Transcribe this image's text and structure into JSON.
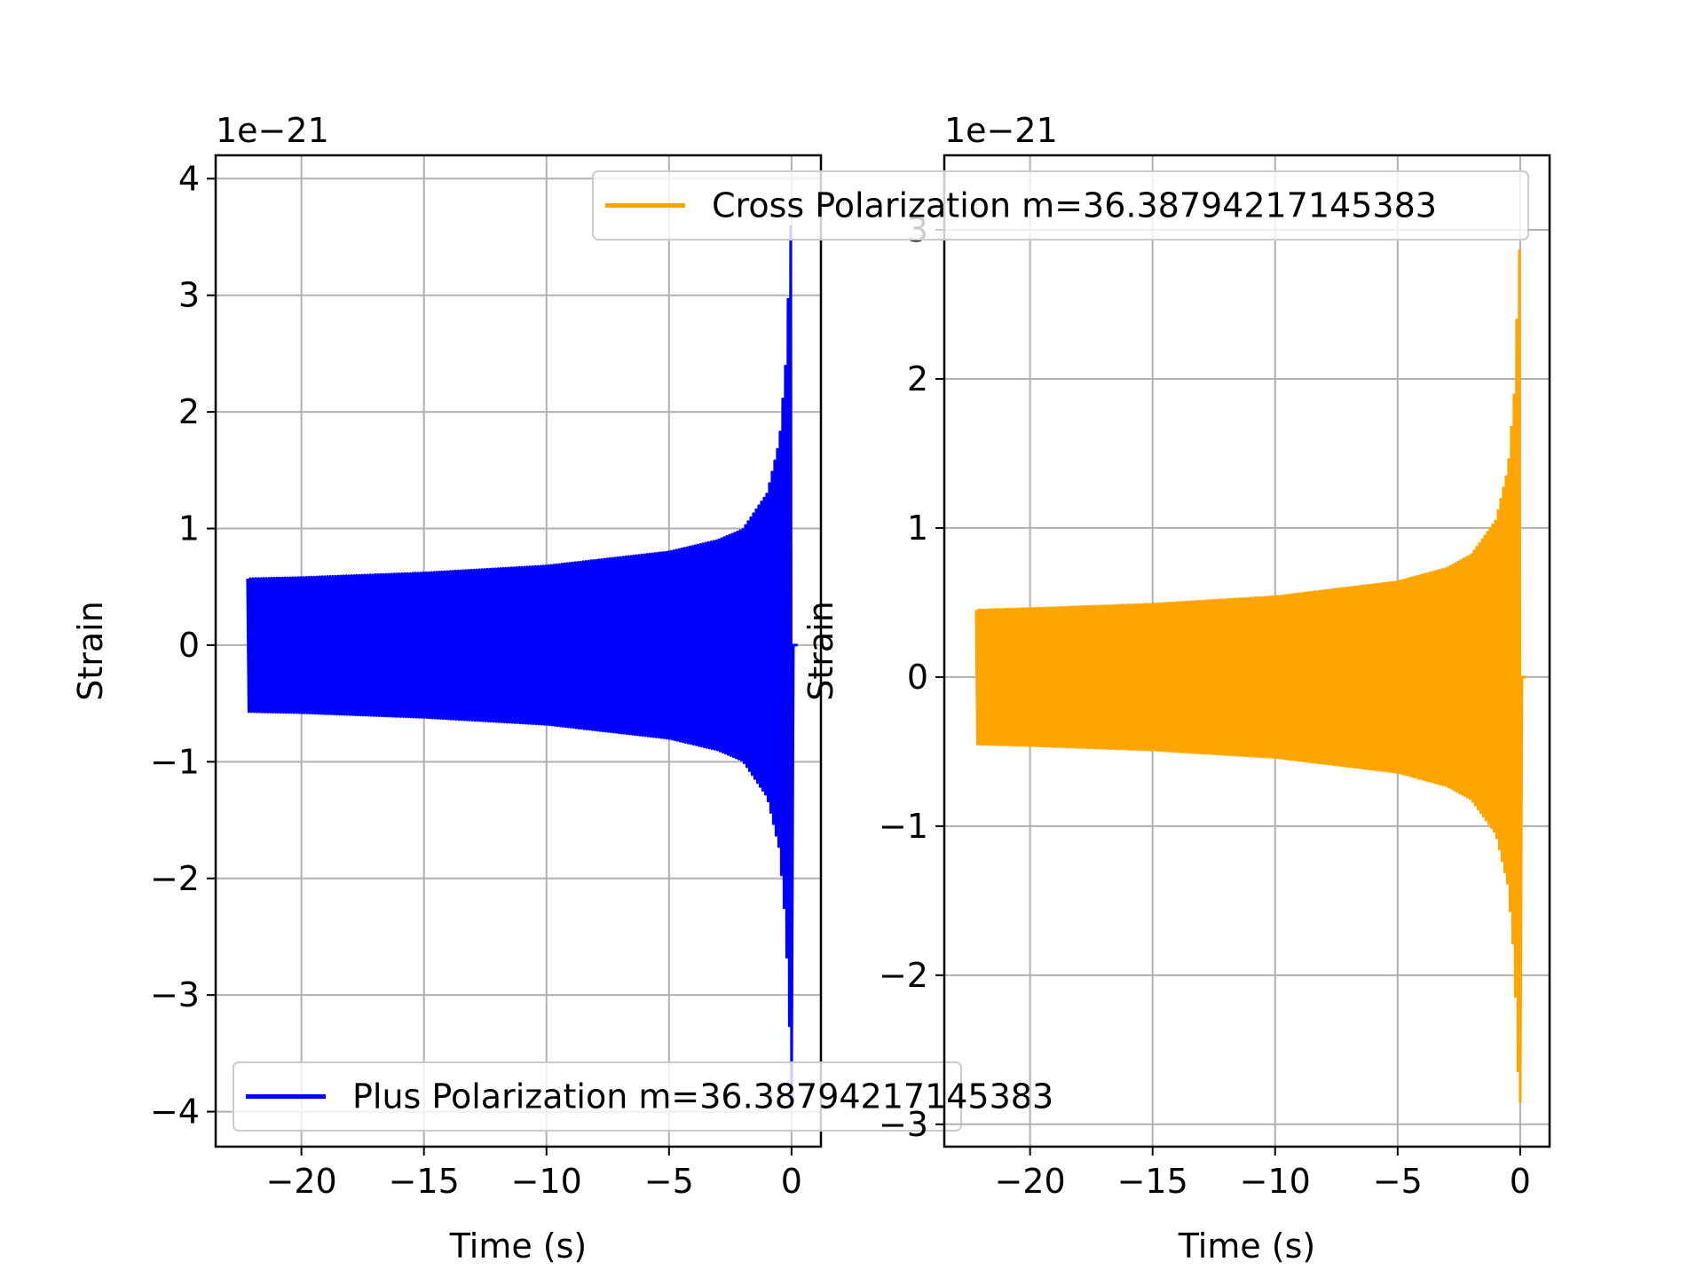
{
  "chart_data": [
    {
      "type": "line",
      "xlabel": "Time (s)",
      "ylabel": "Strain",
      "y_offset_label": "1e−21",
      "xlim": [
        -23.5,
        1.2
      ],
      "ylim": [
        -4.3,
        4.2
      ],
      "x_ticks": [
        -20,
        -15,
        -10,
        -5,
        0
      ],
      "x_tick_labels": [
        "−20",
        "−15",
        "−10",
        "−5",
        "0"
      ],
      "y_ticks": [
        -4,
        -3,
        -2,
        -1,
        0,
        1,
        2,
        3,
        4
      ],
      "y_tick_labels": [
        "−4",
        "−3",
        "−2",
        "−1",
        "0",
        "1",
        "2",
        "3",
        "4"
      ],
      "grid": true,
      "legend_position": "lower-left",
      "series": [
        {
          "name": "Plus Polarization m=36.38794217145383",
          "color": "#0000ff",
          "t_start": -22.2,
          "t_end": 0.0,
          "t_tail_end": 0.25,
          "envelope_t": [
            -22.2,
            -20,
            -15,
            -10,
            -5,
            -3,
            -2,
            -1,
            -0.5,
            -0.25,
            -0.1,
            0.0
          ],
          "envelope_amp": [
            0.57,
            0.58,
            0.62,
            0.68,
            0.8,
            0.9,
            0.99,
            1.3,
            1.75,
            2.4,
            3.2,
            3.8
          ],
          "amp_min_at_merger": -3.9
        }
      ]
    },
    {
      "type": "line",
      "xlabel": "Time (s)",
      "ylabel": "Strain",
      "y_offset_label": "1e−21",
      "xlim": [
        -23.5,
        1.2
      ],
      "ylim": [
        -3.15,
        3.5
      ],
      "x_ticks": [
        -20,
        -15,
        -10,
        -5,
        0
      ],
      "x_tick_labels": [
        "−20",
        "−15",
        "−10",
        "−5",
        "0"
      ],
      "y_ticks": [
        -3,
        -2,
        -1,
        0,
        1,
        2,
        3
      ],
      "y_tick_labels": [
        "−3",
        "−2",
        "−1",
        "0",
        "1",
        "2",
        "3"
      ],
      "grid": true,
      "legend_position": "upper-right",
      "series": [
        {
          "name": "Cross Polarization m=36.38794217145383",
          "color": "#ffa500",
          "t_start": -22.2,
          "t_end": 0.0,
          "t_tail_end": 0.25,
          "envelope_t": [
            -22.2,
            -20,
            -15,
            -10,
            -5,
            -3,
            -2,
            -1,
            -0.5,
            -0.25,
            -0.1,
            0.0
          ],
          "envelope_amp": [
            0.45,
            0.46,
            0.49,
            0.54,
            0.64,
            0.73,
            0.82,
            1.05,
            1.4,
            1.9,
            2.6,
            3.0
          ],
          "amp_min_at_merger": -2.85
        }
      ]
    }
  ]
}
